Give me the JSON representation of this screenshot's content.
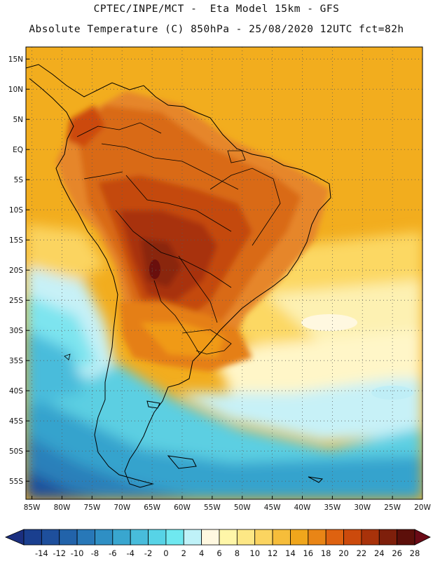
{
  "header": {
    "line1": "CPTEC/INPE/MCT -  Eta Model 15km - GFS",
    "line2": "Absolute Temperature (C) 850hPa - 25/08/2020 12UTC fct=82h"
  },
  "map": {
    "region": "South America",
    "variable": "Absolute Temperature (C) 850hPa",
    "lat_labels": [
      "15N",
      "10N",
      "5N",
      "EQ",
      "5S",
      "10S",
      "15S",
      "20S",
      "25S",
      "30S",
      "35S",
      "40S",
      "45S",
      "50S",
      "55S"
    ],
    "lon_labels": [
      "85W",
      "80W",
      "75W",
      "70W",
      "65W",
      "60W",
      "55W",
      "50W",
      "45W",
      "40W",
      "35W",
      "30W",
      "25W",
      "20W"
    ],
    "lat_range": [
      17,
      -58
    ],
    "lon_range": [
      -86,
      -20
    ]
  },
  "colorbar": {
    "labels": [
      "-14",
      "-12",
      "-10",
      "-8",
      "-6",
      "-4",
      "-2",
      "0",
      "2",
      "4",
      "6",
      "8",
      "10",
      "12",
      "14",
      "16",
      "18",
      "20",
      "22",
      "24",
      "26",
      "28"
    ],
    "colors": [
      "#1a3f8f",
      "#1e4f9c",
      "#2263aa",
      "#2878b8",
      "#2f8fc4",
      "#39a6cf",
      "#48bcdb",
      "#57d3e6",
      "#6fe8f0",
      "#bff2f8",
      "#fff8e0",
      "#fff6a8",
      "#fde785",
      "#fbd460",
      "#f6bd3a",
      "#f0a61c",
      "#e98516",
      "#de6210",
      "#cc4a0c",
      "#a8320a",
      "#7e1f0b",
      "#5c0f0a"
    ],
    "arrow_left_color": "#1b2f80",
    "arrow_right_color": "#6a0a16"
  }
}
